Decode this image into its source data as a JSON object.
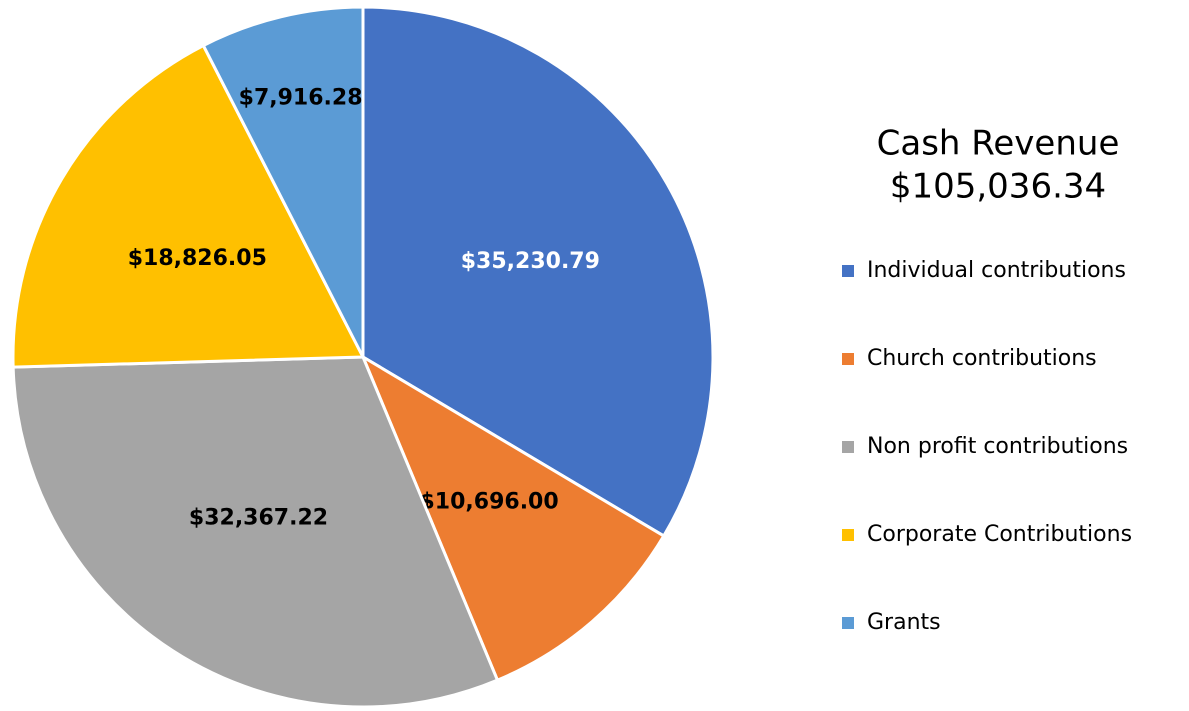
{
  "chart_data": {
    "type": "pie",
    "title": "Cash Revenue",
    "subtitle": "$105,036.34",
    "categories": [
      "Individual contributions",
      "Church contributions",
      "Non profit contributions",
      "Corporate Contributions",
      "Grants"
    ],
    "values": [
      35230.79,
      10696.0,
      32367.22,
      18826.05,
      7916.28
    ],
    "value_labels": [
      "$35,230.79",
      "$10,696.00",
      "$32,367.22",
      "$18,826.05",
      "$7,916.28"
    ],
    "colors": [
      "#4472c4",
      "#ed7d31",
      "#a5a5a5",
      "#ffc000",
      "#5b9bd5"
    ],
    "legend": "right"
  }
}
